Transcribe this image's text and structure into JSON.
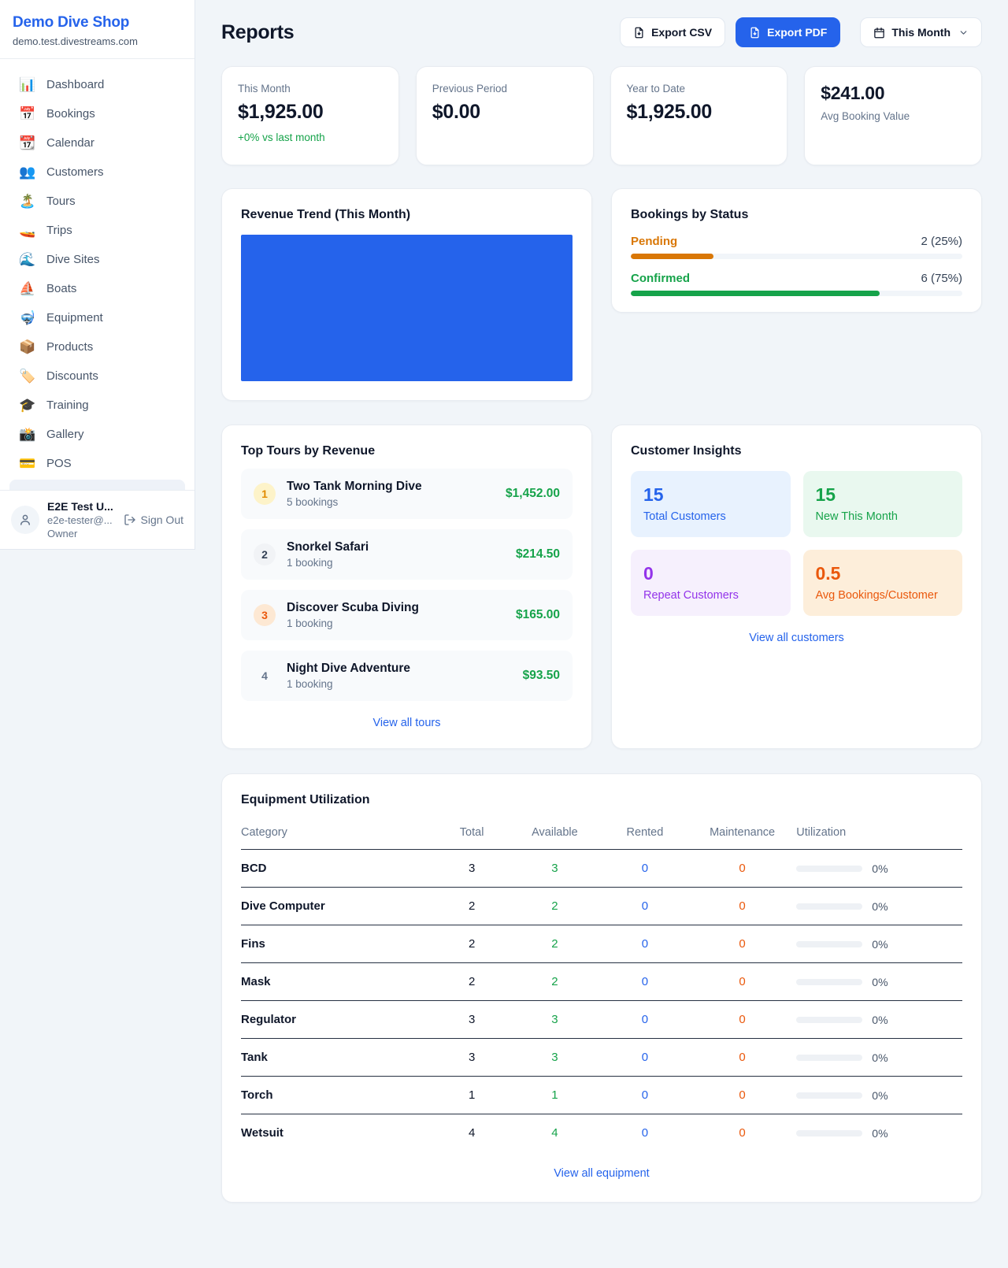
{
  "sidebar": {
    "brand": {
      "name": "Demo Dive Shop",
      "domain": "demo.test.divestreams.com"
    },
    "items": [
      {
        "icon": "📊",
        "icon_name": "bar-chart-icon",
        "label": "Dashboard"
      },
      {
        "icon": "📅",
        "icon_name": "calendar-icon",
        "label": "Bookings"
      },
      {
        "icon": "📆",
        "icon_name": "tear-off-calendar-icon",
        "label": "Calendar"
      },
      {
        "icon": "👥",
        "icon_name": "users-icon",
        "label": "Customers"
      },
      {
        "icon": "🏝️",
        "icon_name": "island-icon",
        "label": "Tours"
      },
      {
        "icon": "🚤",
        "icon_name": "speedboat-icon",
        "label": "Trips"
      },
      {
        "icon": "🌊",
        "icon_name": "wave-icon",
        "label": "Dive Sites"
      },
      {
        "icon": "⛵",
        "icon_name": "sailboat-icon",
        "label": "Boats"
      },
      {
        "icon": "🤿",
        "icon_name": "diving-mask-icon",
        "label": "Equipment"
      },
      {
        "icon": "📦",
        "icon_name": "package-icon",
        "label": "Products"
      },
      {
        "icon": "🏷️",
        "icon_name": "tag-icon",
        "label": "Discounts"
      },
      {
        "icon": "🎓",
        "icon_name": "graduation-cap-icon",
        "label": "Training"
      },
      {
        "icon": "📸",
        "icon_name": "camera-icon",
        "label": "Gallery"
      },
      {
        "icon": "💳",
        "icon_name": "credit-card-icon",
        "label": "POS"
      }
    ],
    "user": {
      "name": "E2E Test U...",
      "email": "e2e-tester@...",
      "role": "Owner",
      "sign_out_label": "Sign Out"
    }
  },
  "header": {
    "title": "Reports",
    "export_csv_label": "Export CSV",
    "export_pdf_label": "Export PDF",
    "period_selector_label": "This Month"
  },
  "stats": {
    "this_month": {
      "label": "This Month",
      "value": "$1,925.00",
      "delta": "+0% vs last month"
    },
    "previous_period": {
      "label": "Previous Period",
      "value": "$0.00"
    },
    "year_to_date": {
      "label": "Year to Date",
      "value": "$1,925.00"
    },
    "avg_booking": {
      "value": "$241.00",
      "label": "Avg Booking Value"
    }
  },
  "revenue_trend": {
    "title": "Revenue Trend (This Month)",
    "bar_color": "#2563eb"
  },
  "bookings_by_status": {
    "title": "Bookings by Status",
    "items": [
      {
        "label": "Pending",
        "value_text": "2 (25%)",
        "percent": 25,
        "color": "#d97706"
      },
      {
        "label": "Confirmed",
        "value_text": "6 (75%)",
        "percent": 75,
        "color": "#16a34a"
      }
    ]
  },
  "top_tours": {
    "title": "Top Tours by Revenue",
    "items": [
      {
        "rank": "1",
        "name": "Two Tank Morning Dive",
        "bookings": "5 bookings",
        "revenue": "$1,452.00"
      },
      {
        "rank": "2",
        "name": "Snorkel Safari",
        "bookings": "1 booking",
        "revenue": "$214.50"
      },
      {
        "rank": "3",
        "name": "Discover Scuba Diving",
        "bookings": "1 booking",
        "revenue": "$165.00"
      },
      {
        "rank": "4",
        "name": "Night Dive Adventure",
        "bookings": "1 booking",
        "revenue": "$93.50"
      }
    ],
    "view_all_label": "View all tours"
  },
  "customer_insights": {
    "title": "Customer Insights",
    "tiles": [
      {
        "value": "15",
        "label": "Total Customers",
        "bg": "#e8f2fe",
        "color": "#2563eb"
      },
      {
        "value": "15",
        "label": "New This Month",
        "bg": "#e9f8ef",
        "color": "#16a34a"
      },
      {
        "value": "0",
        "label": "Repeat Customers",
        "bg": "#f6f0fd",
        "color": "#9333ea"
      },
      {
        "value": "0.5",
        "label": "Avg Bookings/Customer",
        "bg": "#fdeeda",
        "color": "#ea580c"
      }
    ],
    "view_all_label": "View all customers"
  },
  "equipment": {
    "title": "Equipment Utilization",
    "columns": [
      "Category",
      "Total",
      "Available",
      "Rented",
      "Maintenance",
      "Utilization"
    ],
    "rows": [
      {
        "category": "BCD",
        "total": "3",
        "available": "3",
        "rented": "0",
        "maintenance": "0",
        "utilization": "0%",
        "utilization_percent": 0
      },
      {
        "category": "Dive Computer",
        "total": "2",
        "available": "2",
        "rented": "0",
        "maintenance": "0",
        "utilization": "0%",
        "utilization_percent": 0
      },
      {
        "category": "Fins",
        "total": "2",
        "available": "2",
        "rented": "0",
        "maintenance": "0",
        "utilization": "0%",
        "utilization_percent": 0
      },
      {
        "category": "Mask",
        "total": "2",
        "available": "2",
        "rented": "0",
        "maintenance": "0",
        "utilization": "0%",
        "utilization_percent": 0
      },
      {
        "category": "Regulator",
        "total": "3",
        "available": "3",
        "rented": "0",
        "maintenance": "0",
        "utilization": "0%",
        "utilization_percent": 0
      },
      {
        "category": "Tank",
        "total": "3",
        "available": "3",
        "rented": "0",
        "maintenance": "0",
        "utilization": "0%",
        "utilization_percent": 0
      },
      {
        "category": "Torch",
        "total": "1",
        "available": "1",
        "rented": "0",
        "maintenance": "0",
        "utilization": "0%",
        "utilization_percent": 0
      },
      {
        "category": "Wetsuit",
        "total": "4",
        "available": "4",
        "rented": "0",
        "maintenance": "0",
        "utilization": "0%",
        "utilization_percent": 0
      }
    ],
    "view_all_label": "View all equipment"
  },
  "chart_data": [
    {
      "type": "bar",
      "title": "Revenue Trend (This Month)",
      "categories": [
        "This Month"
      ],
      "values": [
        1925
      ],
      "xlabel": "",
      "ylabel": "",
      "notes": "single solid full-width blue bar filling the plot area; no axes, gridlines or labels visible",
      "color": "#2563eb"
    },
    {
      "type": "bar",
      "title": "Bookings by Status",
      "orientation": "horizontal",
      "categories": [
        "Pending",
        "Confirmed"
      ],
      "values": [
        2,
        6
      ],
      "value_labels": [
        "2 (25%)",
        "6 (75%)"
      ],
      "percents": [
        25,
        75
      ],
      "colors": [
        "#d97706",
        "#16a34a"
      ],
      "legend_position": "none",
      "grid": false
    }
  ],
  "colors": {
    "accent_blue": "#2563eb",
    "success_green": "#16a34a",
    "warning_orange": "#d97706",
    "maintenance_orange": "#ea580c",
    "background": "#f1f5f9"
  }
}
